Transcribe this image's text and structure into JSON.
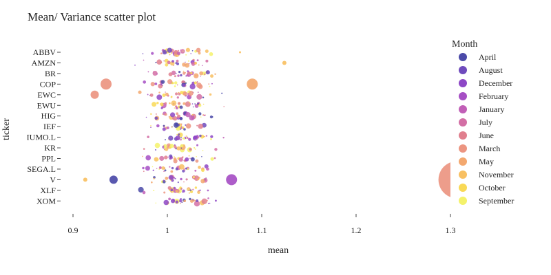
{
  "chart_data": {
    "type": "scatter",
    "title": "Mean/ Variance scatter plot",
    "xlabel": "mean",
    "ylabel": "ticker",
    "xlim": [
      0.9,
      1.3
    ],
    "xticks": [
      "0.9",
      "1",
      "1.1",
      "1.2",
      "1.3"
    ],
    "xtick_values": [
      0.9,
      1.0,
      1.1,
      1.2,
      1.3
    ],
    "categories": [
      "ABBV",
      "AMZN",
      "BR",
      "COP",
      "EWC",
      "EWU",
      "HIG",
      "IEF",
      "IUMO.L",
      "KR",
      "PPL",
      "SEGA.L",
      "V",
      "XLF",
      "XOM"
    ],
    "grid": false,
    "legend": {
      "title": "Month",
      "placement": "right",
      "entries": [
        {
          "name": "April",
          "color": "#4b4aa8"
        },
        {
          "name": "August",
          "color": "#6f4bbd"
        },
        {
          "name": "December",
          "color": "#8d47c6"
        },
        {
          "name": "February",
          "color": "#a64fc4"
        },
        {
          "name": "January",
          "color": "#c15fb7"
        },
        {
          "name": "July",
          "color": "#d36fa5"
        },
        {
          "name": "June",
          "color": "#e07f8e"
        },
        {
          "name": "March",
          "color": "#ec9581"
        },
        {
          "name": "May",
          "color": "#f3a86f"
        },
        {
          "name": "November",
          "color": "#f8c062"
        },
        {
          "name": "October",
          "color": "#f9d956"
        },
        {
          "name": "September",
          "color": "#f4f26b"
        }
      ]
    },
    "highlighted_points": [
      {
        "ticker": "COP",
        "x": 1.09,
        "month": "May",
        "size": "large"
      },
      {
        "ticker": "COP",
        "x": 0.935,
        "month": "March",
        "size": "large"
      },
      {
        "ticker": "EWC",
        "x": 0.923,
        "month": "March",
        "size": "medium"
      },
      {
        "ticker": "V",
        "x": 1.068,
        "month": "February",
        "size": "large"
      },
      {
        "ticker": "V",
        "x": 0.943,
        "month": "April",
        "size": "medium"
      },
      {
        "ticker": "V",
        "x": 0.913,
        "month": "November",
        "size": "small"
      },
      {
        "ticker": "AMZN",
        "x": 1.124,
        "month": "November",
        "size": "small"
      },
      {
        "ticker": "ABBV",
        "x": 1.077,
        "month": "November",
        "size": "tiny"
      },
      {
        "ticker": "V",
        "x": 1.307,
        "month": "March",
        "size": "huge"
      }
    ]
  }
}
